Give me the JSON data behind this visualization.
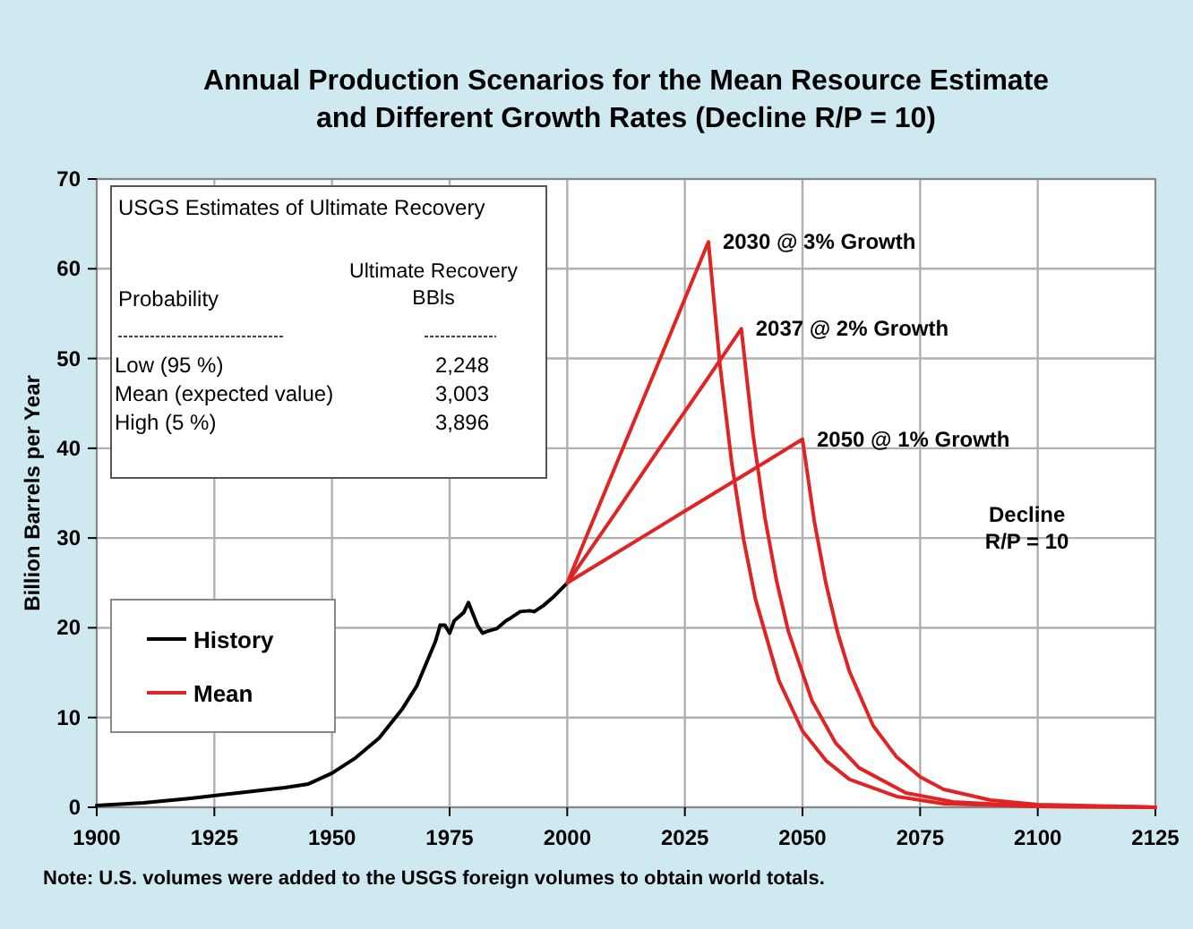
{
  "chart_data": {
    "type": "line",
    "title": "Annual Production Scenarios for the Mean Resource Estimate\nand Different Growth Rates (Decline R/P = 10)",
    "ylabel": "Billion Barrels per Year",
    "xlim": [
      1900,
      2125
    ],
    "xticks": [
      1900,
      1925,
      1950,
      1975,
      2000,
      2025,
      2050,
      2075,
      2100,
      2125
    ],
    "ylim": [
      0,
      70
    ],
    "yticks": [
      0,
      10,
      20,
      30,
      40,
      50,
      60,
      70
    ],
    "grid": true,
    "legend": "bottom left",
    "series": [
      {
        "name": "History",
        "color": "#000000",
        "x": [
          1900,
          1910,
          1920,
          1930,
          1935,
          1940,
          1945,
          1950,
          1955,
          1960,
          1965,
          1968,
          1970,
          1972,
          1973,
          1974,
          1975,
          1976,
          1978,
          1979,
          1980,
          1981,
          1982,
          1983,
          1985,
          1987,
          1988,
          1990,
          1992,
          1993,
          1995,
          1997,
          2000
        ],
        "values": [
          0.2,
          0.5,
          1.0,
          1.6,
          1.9,
          2.2,
          2.6,
          3.8,
          5.5,
          7.7,
          11,
          13.5,
          16,
          18.5,
          20.3,
          20.3,
          19.4,
          20.8,
          21.7,
          22.8,
          21.5,
          20.2,
          19.4,
          19.6,
          19.9,
          20.8,
          21.1,
          21.8,
          21.9,
          21.8,
          22.5,
          23.4,
          25
        ]
      },
      {
        "name": "Mean",
        "color": "#e02424",
        "x": [
          2000,
          2010,
          2020,
          2030,
          2032.5,
          2035,
          2037.5,
          2040,
          2045,
          2050,
          2055,
          2060,
          2070,
          2080,
          2100,
          2125
        ],
        "values": [
          25,
          37.7,
          50.3,
          63,
          49.1,
          38.2,
          29.8,
          23.2,
          14.1,
          8.5,
          5.2,
          3.1,
          1.2,
          0.4,
          0.1,
          0
        ]
      },
      {
        "color": "#e02424",
        "x": [
          2000,
          2010,
          2020,
          2030,
          2037,
          2039.5,
          2042,
          2044.5,
          2047,
          2052,
          2057,
          2062,
          2072,
          2082,
          2100,
          2125
        ],
        "values": [
          25,
          32.6,
          40.3,
          47.9,
          53.3,
          41.5,
          32.3,
          25.2,
          19.6,
          11.9,
          7.2,
          4.4,
          1.6,
          0.6,
          0.1,
          0
        ]
      },
      {
        "color": "#e02424",
        "x": [
          2000,
          2010,
          2020,
          2030,
          2040,
          2050,
          2052.5,
          2055,
          2057.5,
          2060,
          2065,
          2070,
          2075,
          2080,
          2090,
          2100,
          2125
        ],
        "values": [
          25,
          28.2,
          31.4,
          34.6,
          37.8,
          41,
          31.9,
          24.9,
          19.4,
          15.1,
          9.1,
          5.6,
          3.4,
          2.0,
          0.8,
          0.3,
          0
        ]
      }
    ],
    "annotations": [
      {
        "text": "2030 @ 3% Growth",
        "x": 2030,
        "y": 63
      },
      {
        "text": "2037 @ 2% Growth",
        "x": 2037,
        "y": 53.3
      },
      {
        "text": "2050 @ 1% Growth",
        "x": 2050,
        "y": 41
      },
      "Decline\nR/P = 10",
      "USGS Estimates of Ultimate Recovery",
      "Probability",
      "Ultimate Recovery\nBBls",
      "Low (95 %)",
      "2,248",
      "Mean (expected value)",
      "3,003",
      "High (5 %)",
      "3,896",
      "Note:  U.S. volumes were added to the USGS foreign volumes to obtain world totals."
    ]
  }
}
